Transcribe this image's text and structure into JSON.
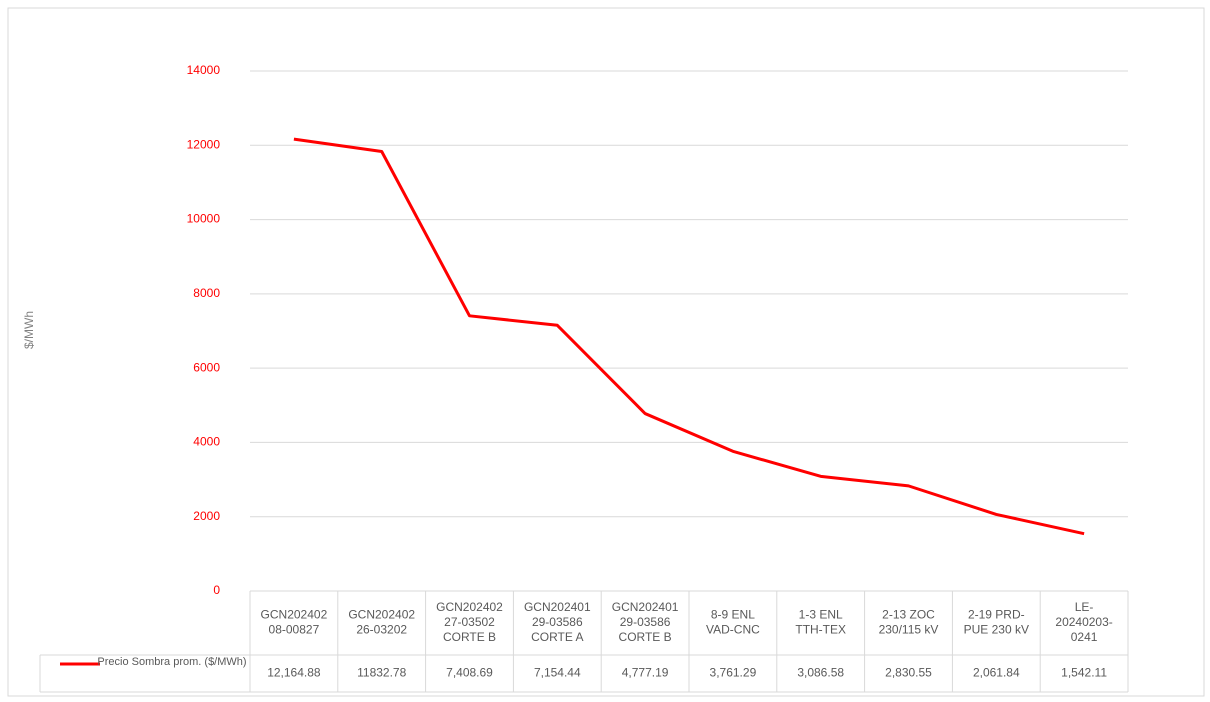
{
  "chart_data": {
    "type": "line",
    "y_axis_label": "$/MWh",
    "categories": [
      [
        "GCN202402",
        "08-00827"
      ],
      [
        "GCN202402",
        "26-03202"
      ],
      [
        "GCN202402",
        "27-03502",
        "CORTE B"
      ],
      [
        "GCN202401",
        "29-03586",
        "CORTE A"
      ],
      [
        "GCN202401",
        "29-03586",
        "CORTE B"
      ],
      [
        "8-9 ENL",
        "VAD-CNC"
      ],
      [
        "1-3 ENL",
        "TTH-TEX"
      ],
      [
        "2-13 ZOC",
        "230/115 kV"
      ],
      [
        "2-19 PRD-",
        "PUE 230 kV"
      ],
      [
        "LE-",
        "20240203-",
        "0241"
      ]
    ],
    "series": [
      {
        "name": "Precio Sombra prom. ($/MWh)",
        "color": "#ff0000",
        "values": [
          12164.88,
          11832.78,
          7408.69,
          7154.44,
          4777.19,
          3761.29,
          3086.58,
          2830.55,
          2061.84,
          1542.11
        ],
        "value_labels": [
          "12,164.88",
          "11832.78",
          "7,408.69",
          "7,154.44",
          "4,777.19",
          "3,761.29",
          "3,086.58",
          "2,830.55",
          "2,061.84",
          "1,542.11"
        ]
      }
    ],
    "ylim": [
      0,
      14000
    ],
    "yticks": [
      0,
      2000,
      4000,
      6000,
      8000,
      10000,
      12000,
      14000
    ],
    "grid": true
  }
}
